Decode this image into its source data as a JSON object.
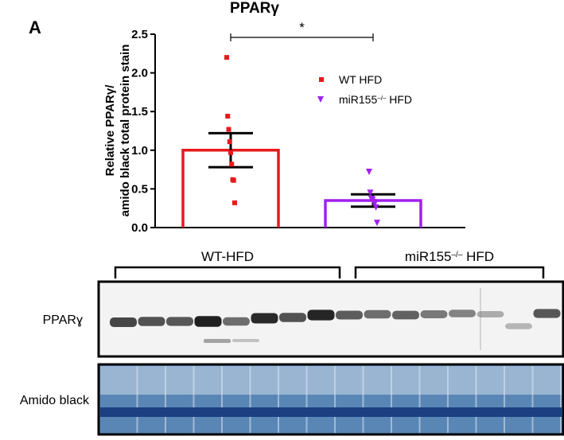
{
  "panel_label": "A",
  "chart_data": {
    "type": "bar",
    "title": "PPARγ",
    "ylabel_lines": [
      "Relative PPARγ/",
      "amido black total protein stain"
    ],
    "xlabel": "",
    "ylim": [
      0,
      2.5
    ],
    "yticks": [
      "0.0",
      "0.5",
      "1.0",
      "1.5",
      "2.0",
      "2.5"
    ],
    "grid": false,
    "legend_position": "top-right",
    "significance": "*",
    "categories": [
      "WT HFD",
      "miR155–/– HFD"
    ],
    "series": [
      {
        "name": "WT HFD",
        "name_parts": [
          "WT HFD"
        ],
        "color": "#e8191c",
        "marker": "square",
        "mean": 1.0,
        "sem": 0.22,
        "points": [
          2.2,
          1.44,
          1.27,
          1.11,
          0.97,
          0.82,
          0.62,
          0.61,
          0.32
        ]
      },
      {
        "name": "miR155–/– HFD",
        "name_parts": [
          "miR155",
          "–/–",
          " HFD"
        ],
        "color": "#a020f0",
        "marker": "triangle-down",
        "mean": 0.35,
        "sem": 0.08,
        "points": [
          0.72,
          0.45,
          0.37,
          0.36,
          0.33,
          0.31,
          0.26,
          0.06
        ]
      }
    ]
  },
  "blot": {
    "groups": [
      {
        "parts": [
          "WT-HFD"
        ]
      },
      {
        "parts": [
          "miR155",
          "–/–",
          " HFD"
        ]
      }
    ],
    "rows": [
      {
        "label": "PPARɣ",
        "background": "#f3f3f3"
      },
      {
        "label": "Amido black",
        "background": "#5a86b6"
      }
    ]
  }
}
